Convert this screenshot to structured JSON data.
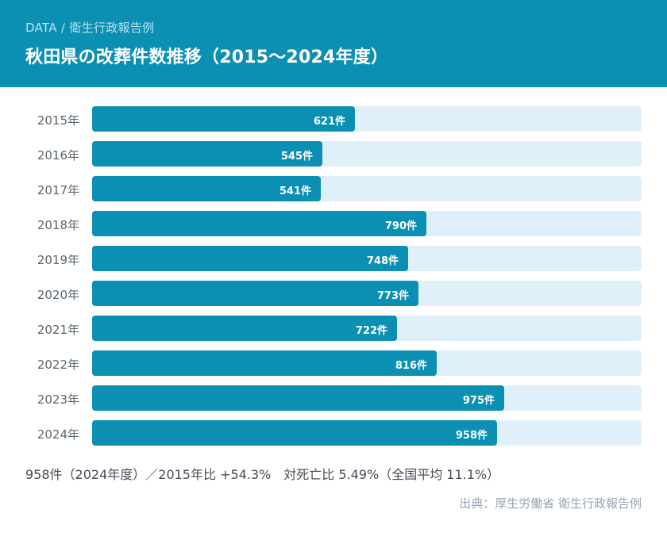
{
  "header": {
    "breadcrumb": "DATA / 衛生行政報告例",
    "title": "秋田県の改葬件数推移（2015〜2024年度）"
  },
  "colors": {
    "header_bg": "#0b90b3",
    "bar": "#0b90b3",
    "track": "#dff0fb"
  },
  "chart_data": {
    "type": "bar",
    "orientation": "horizontal",
    "title": "秋田県の改葬件数推移（2015〜2024年度）",
    "categories": [
      "2015年",
      "2016年",
      "2017年",
      "2018年",
      "2019年",
      "2020年",
      "2021年",
      "2022年",
      "2023年",
      "2024年"
    ],
    "values": [
      621,
      545,
      541,
      790,
      748,
      773,
      722,
      816,
      975,
      958
    ],
    "value_labels": [
      "621件",
      "545件",
      "541件",
      "790件",
      "748件",
      "773件",
      "722件",
      "816件",
      "975件",
      "958件"
    ],
    "unit": "件",
    "xlim": [
      0,
      1300
    ]
  },
  "summary": "958件（2024年度）／2015年比 +54.3%　対死亡比 5.49%（全国平均 11.1%）",
  "source": "出典：厚生労働省 衛生行政報告例"
}
